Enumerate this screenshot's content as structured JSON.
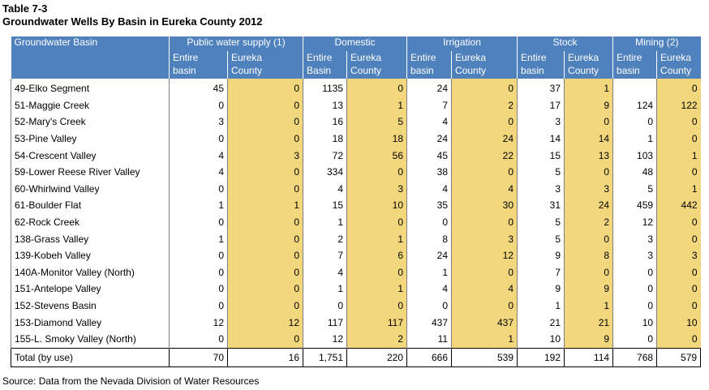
{
  "title_line1": "Table 7-3",
  "title_line2": "Groundwater Wells By Basin in Eureka County 2012",
  "header": {
    "basin_label": "Groundwater Basin",
    "groups": [
      "Public water supply (1)",
      "Domestic",
      "Irrigation",
      "Stock",
      "Mining (2)"
    ],
    "subheaders_line1": [
      "Entire",
      "Eureka",
      "Entire",
      "Eureka",
      "Entire",
      "Eureka",
      "Entire",
      "Eureka",
      "Entire",
      "Eureka"
    ],
    "subheaders_line2": [
      "basin",
      "County",
      "Basin",
      "County",
      "basin",
      "County",
      "basin",
      "County",
      "basin",
      "County"
    ]
  },
  "rows": [
    {
      "basin": "49-Elko Segment",
      "values": [
        "45",
        "0",
        "1135",
        "0",
        "24",
        "0",
        "37",
        "1",
        "",
        "0"
      ]
    },
    {
      "basin": "51-Maggie Creek",
      "values": [
        "0",
        "0",
        "13",
        "1",
        "7",
        "2",
        "17",
        "9",
        "124",
        "122"
      ]
    },
    {
      "basin": "52-Mary's Creek",
      "values": [
        "3",
        "0",
        "16",
        "5",
        "4",
        "0",
        "3",
        "0",
        "0",
        "0"
      ]
    },
    {
      "basin": "53-Pine Valley",
      "values": [
        "0",
        "0",
        "18",
        "18",
        "24",
        "24",
        "14",
        "14",
        "1",
        "0"
      ]
    },
    {
      "basin": "54-Crescent Valley",
      "values": [
        "4",
        "3",
        "72",
        "56",
        "45",
        "22",
        "15",
        "13",
        "103",
        "1"
      ]
    },
    {
      "basin": "59-Lower Reese River Valley",
      "values": [
        "4",
        "0",
        "334",
        "0",
        "38",
        "0",
        "5",
        "0",
        "48",
        "0"
      ]
    },
    {
      "basin": "60-Whirlwind Valley",
      "values": [
        "0",
        "0",
        "4",
        "3",
        "4",
        "4",
        "3",
        "3",
        "5",
        "1"
      ]
    },
    {
      "basin": "61-Boulder Flat",
      "values": [
        "1",
        "1",
        "15",
        "10",
        "35",
        "30",
        "31",
        "24",
        "459",
        "442"
      ]
    },
    {
      "basin": "62-Rock Creek",
      "values": [
        "0",
        "0",
        "1",
        "0",
        "0",
        "0",
        "5",
        "2",
        "12",
        "0"
      ]
    },
    {
      "basin": "138-Grass Valley",
      "values": [
        "1",
        "0",
        "2",
        "1",
        "8",
        "3",
        "5",
        "0",
        "3",
        "0"
      ]
    },
    {
      "basin": "139-Kobeh Valley",
      "values": [
        "0",
        "0",
        "7",
        "6",
        "24",
        "12",
        "9",
        "8",
        "3",
        "3"
      ]
    },
    {
      "basin": "140A-Monitor Valley (North)",
      "values": [
        "0",
        "0",
        "4",
        "0",
        "1",
        "0",
        "7",
        "0",
        "0",
        "0"
      ]
    },
    {
      "basin": "151-Antelope Valley",
      "values": [
        "0",
        "0",
        "1",
        "1",
        "4",
        "4",
        "9",
        "9",
        "0",
        "0"
      ]
    },
    {
      "basin": "152-Stevens Basin",
      "values": [
        "0",
        "0",
        "0",
        "0",
        "0",
        "0",
        "1",
        "1",
        "0",
        "0"
      ]
    },
    {
      "basin": "153-Diamond Valley",
      "values": [
        "12",
        "12",
        "117",
        "117",
        "437",
        "437",
        "21",
        "21",
        "10",
        "10"
      ]
    },
    {
      "basin": "155-L. Smoky Valley (North)",
      "values": [
        "0",
        "0",
        "12",
        "2",
        "11",
        "1",
        "10",
        "9",
        "0",
        "0"
      ]
    }
  ],
  "total": {
    "label": "Total (by use)",
    "values": [
      "70",
      "16",
      "1,751",
      "220",
      "666",
      "539",
      "192",
      "114",
      "768",
      "579"
    ]
  },
  "source": "Source: Data from the Nevada Division of Water Resources"
}
